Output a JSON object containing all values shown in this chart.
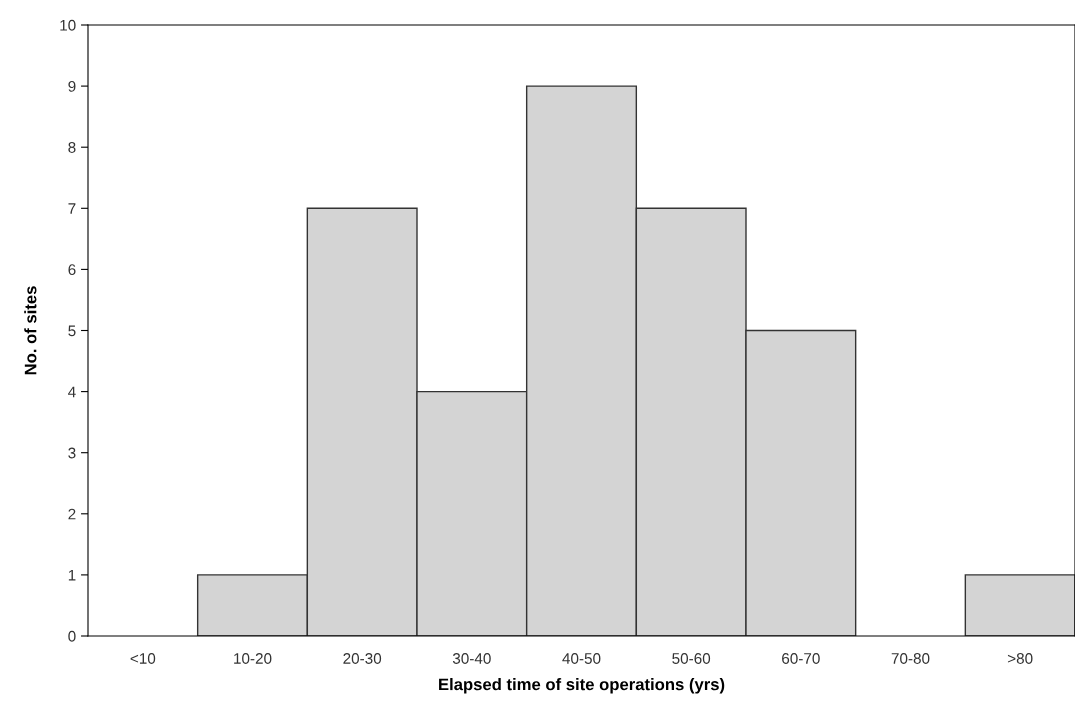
{
  "chart_data": {
    "type": "bar",
    "xlabel": "Elapsed time of site operations (yrs)",
    "ylabel": "No. of sites",
    "categories": [
      "<10",
      "10-20",
      "20-30",
      "30-40",
      "40-50",
      "50-60",
      "60-70",
      "70-80",
      ">80"
    ],
    "values": [
      0,
      1,
      7,
      4,
      9,
      7,
      5,
      0,
      1
    ],
    "color": "#d4d4d4",
    "ylim": [
      0,
      10
    ],
    "yticks": [
      0,
      1,
      2,
      3,
      4,
      5,
      6,
      7,
      8,
      9,
      10
    ],
    "grid": false
  }
}
